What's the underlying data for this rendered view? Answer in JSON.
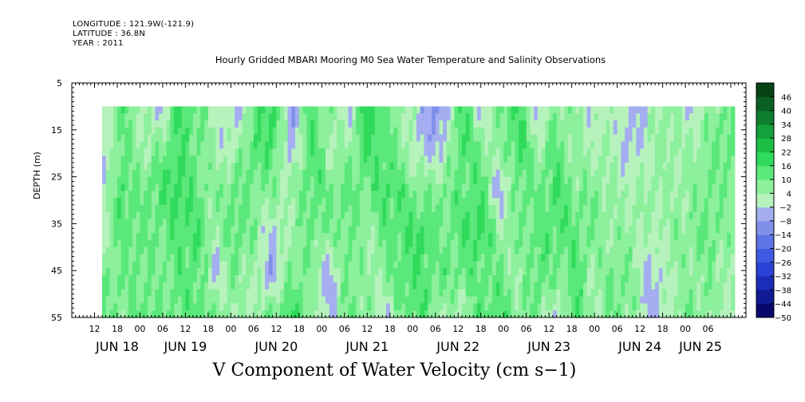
{
  "header": {
    "longitude": "LONGITUDE : 121.9W(-121.9)",
    "latitude": "LATITUDE : 36.8N",
    "year": "YEAR : 2011"
  },
  "chart_data": {
    "type": "heatmap",
    "title": "Hourly Gridded MBARI Mooring M0 Sea Water Temperature and Salinity Observations",
    "xlabel": "V Component of Water Velocity (cm s−1)",
    "ylabel": "DEPTH (m)",
    "ylim": [
      5,
      55
    ],
    "y_ticks": [
      5,
      15,
      25,
      35,
      45,
      55
    ],
    "data_depth_range": [
      10,
      55
    ],
    "x_range_hours": [
      -18,
      160
    ],
    "data_time_range_hours": [
      -10,
      157
    ],
    "x_hour_ticks": [
      {
        "h": -12,
        "label": "12"
      },
      {
        "h": -6,
        "label": "18"
      },
      {
        "h": 0,
        "label": "00"
      },
      {
        "h": 6,
        "label": "06"
      },
      {
        "h": 12,
        "label": "12"
      },
      {
        "h": 18,
        "label": "18"
      },
      {
        "h": 24,
        "label": "00"
      },
      {
        "h": 30,
        "label": "06"
      },
      {
        "h": 36,
        "label": "12"
      },
      {
        "h": 42,
        "label": "18"
      },
      {
        "h": 48,
        "label": "00"
      },
      {
        "h": 54,
        "label": "06"
      },
      {
        "h": 60,
        "label": "12"
      },
      {
        "h": 66,
        "label": "18"
      },
      {
        "h": 72,
        "label": "00"
      },
      {
        "h": 78,
        "label": "06"
      },
      {
        "h": 84,
        "label": "12"
      },
      {
        "h": 90,
        "label": "18"
      },
      {
        "h": 96,
        "label": "00"
      },
      {
        "h": 102,
        "label": "06"
      },
      {
        "h": 108,
        "label": "12"
      },
      {
        "h": 114,
        "label": "18"
      },
      {
        "h": 120,
        "label": "00"
      },
      {
        "h": 126,
        "label": "06"
      },
      {
        "h": 132,
        "label": "12"
      },
      {
        "h": 138,
        "label": "18"
      },
      {
        "h": 144,
        "label": "00"
      },
      {
        "h": 150,
        "label": "06"
      }
    ],
    "day_labels": [
      {
        "h": -6,
        "label": "JUN 18"
      },
      {
        "h": 12,
        "label": "JUN 19"
      },
      {
        "h": 36,
        "label": "JUN 20"
      },
      {
        "h": 60,
        "label": "JUN 21"
      },
      {
        "h": 84,
        "label": "JUN 22"
      },
      {
        "h": 108,
        "label": "JUN 23"
      },
      {
        "h": 132,
        "label": "JUN 24"
      },
      {
        "h": 148,
        "label": "JUN 25"
      }
    ],
    "colorbar_levels": [
      -50,
      -44,
      -38,
      -32,
      -26,
      -20,
      -14,
      -8,
      -2,
      4,
      10,
      16,
      22,
      28,
      34,
      40,
      46
    ],
    "colorbar_range": [
      -50,
      52
    ],
    "colors": {
      "strong_negative": "#0a0a6e",
      "mid_negative": "#3a4ed8",
      "weak_negative": "#aab0ee",
      "near_zero": "#b0f0b8",
      "weak_positive": "#66ee88",
      "mid_positive": "#22cc44",
      "strong_positive": "#0a4a1a"
    },
    "representative_profiles": [
      {
        "h": -10,
        "v": [
          -3,
          -4,
          -2,
          4,
          8,
          10
        ]
      },
      {
        "h": -5,
        "v": [
          14,
          12,
          16,
          12,
          10,
          8
        ]
      },
      {
        "h": 0,
        "v": [
          6,
          4,
          10,
          12,
          10,
          12
        ]
      },
      {
        "h": 5,
        "v": [
          -6,
          8,
          14,
          10,
          8,
          12
        ]
      },
      {
        "h": 10,
        "v": [
          18,
          16,
          18,
          14,
          12,
          10
        ]
      },
      {
        "h": 15,
        "v": [
          12,
          10,
          12,
          16,
          14,
          14
        ]
      },
      {
        "h": 20,
        "v": [
          4,
          2,
          6,
          4,
          -4,
          10
        ]
      },
      {
        "h": 25,
        "v": [
          -4,
          2,
          12,
          14,
          8,
          4
        ]
      },
      {
        "h": 30,
        "v": [
          10,
          14,
          10,
          8,
          4,
          2
        ]
      },
      {
        "h": 35,
        "v": [
          20,
          16,
          8,
          -4,
          -6,
          12
        ]
      },
      {
        "h": 40,
        "v": [
          -8,
          -6,
          4,
          6,
          10,
          18
        ]
      },
      {
        "h": 45,
        "v": [
          14,
          16,
          14,
          10,
          8,
          6
        ]
      },
      {
        "h": 50,
        "v": [
          8,
          4,
          10,
          8,
          -6,
          -4
        ]
      },
      {
        "h": 55,
        "v": [
          -4,
          6,
          12,
          10,
          12,
          10
        ]
      },
      {
        "h": 60,
        "v": [
          22,
          16,
          10,
          6,
          4,
          8
        ]
      },
      {
        "h": 65,
        "v": [
          10,
          14,
          16,
          12,
          8,
          -2
        ]
      },
      {
        "h": 70,
        "v": [
          4,
          6,
          12,
          14,
          16,
          12
        ]
      },
      {
        "h": 75,
        "v": [
          -6,
          -4,
          8,
          18,
          12,
          14
        ]
      },
      {
        "h": 80,
        "v": [
          -10,
          -2,
          10,
          8,
          12,
          4
        ]
      },
      {
        "h": 85,
        "v": [
          20,
          16,
          12,
          14,
          10,
          2
        ]
      },
      {
        "h": 90,
        "v": [
          -4,
          8,
          16,
          18,
          12,
          14
        ]
      },
      {
        "h": 95,
        "v": [
          10,
          4,
          -6,
          6,
          10,
          16
        ]
      },
      {
        "h": 100,
        "v": [
          16,
          18,
          12,
          8,
          4,
          8
        ]
      },
      {
        "h": 105,
        "v": [
          -4,
          6,
          10,
          12,
          14,
          10
        ]
      },
      {
        "h": 110,
        "v": [
          8,
          12,
          16,
          14,
          8,
          -4
        ]
      },
      {
        "h": 115,
        "v": [
          6,
          4,
          8,
          12,
          14,
          16
        ]
      },
      {
        "h": 120,
        "v": [
          -2,
          4,
          10,
          8,
          4,
          2
        ]
      },
      {
        "h": 125,
        "v": [
          4,
          2,
          4,
          6,
          10,
          12
        ]
      },
      {
        "h": 130,
        "v": [
          -6,
          -4,
          4,
          6,
          8,
          6
        ]
      },
      {
        "h": 135,
        "v": [
          2,
          4,
          6,
          2,
          -6,
          -4
        ]
      },
      {
        "h": 140,
        "v": [
          8,
          6,
          4,
          6,
          4,
          2
        ]
      },
      {
        "h": 145,
        "v": [
          -2,
          4,
          6,
          8,
          6,
          10
        ]
      },
      {
        "h": 150,
        "v": [
          6,
          8,
          10,
          12,
          8,
          6
        ]
      },
      {
        "h": 155,
        "v": [
          10,
          12,
          8,
          6,
          4,
          2
        ]
      }
    ]
  }
}
